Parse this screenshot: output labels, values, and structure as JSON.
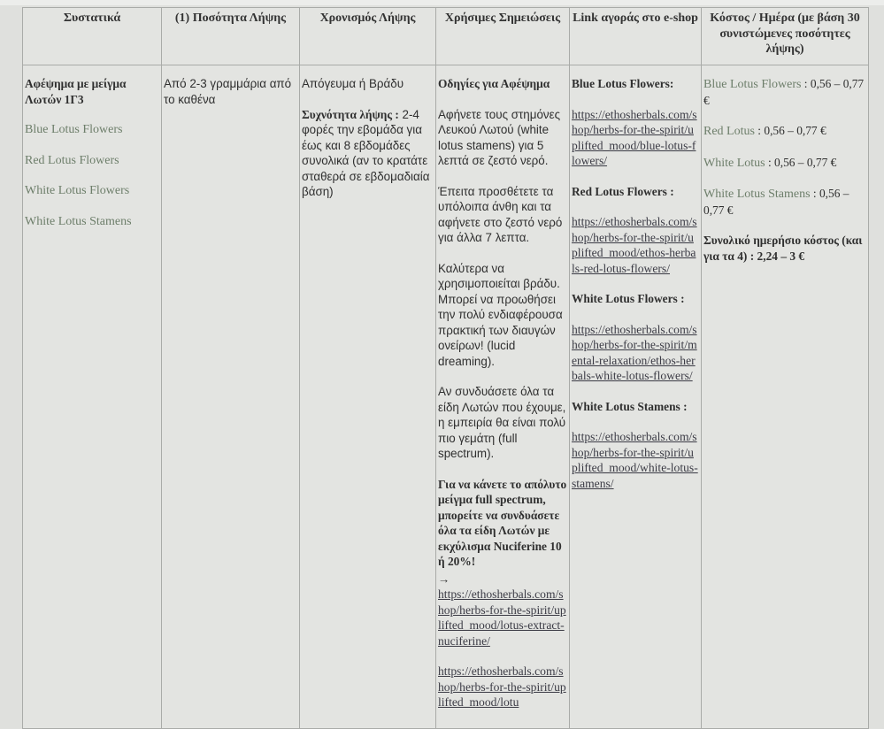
{
  "headers": [
    "Συστατικά",
    "(1) Ποσότητα Λήψης",
    "Χρονισμός Λήψης",
    "Χρήσιμες Σημειώσεις",
    "Link αγοράς στο e-shop",
    "Κόστος / Ημέρα (με βάση 30 συνιστώμενες ποσότητες λήψης)"
  ],
  "row": {
    "ingredients": {
      "title": "Αφέψημα με μείγμα Λωτών 1Γ3",
      "items": [
        "Blue Lotus Flowers",
        "Red Lotus Flowers",
        "White Lotus Flowers",
        "White Lotus Stamens"
      ]
    },
    "quantity": "Από 2-3 γραμμάρια από το καθένα",
    "timing": {
      "time": "Απόγευμα ή Βράδυ",
      "frequency_label": "Συχνότητα λήψης :",
      "frequency_text": " 2-4 φορές την εβομάδα για έως και 8 εβδομάδες συνολικά (αν το κρατάτε σταθερά σε εβδομαδιαία βάση)"
    },
    "notes": {
      "title": "Οδηγίες για Αφέψημα",
      "p1": "Αφήνετε τους στημόνες Λευκού Λωτού (white lotus stamens) για 5 λεπτά σε ζεστό νερό.",
      "p2": "Έπειτα προσθέτετε τα υπόλοιπα άνθη και τα αφήνετε στο ζεστό νερό για άλλα 7 λεπτα.",
      "p3": "Καλύτερα να χρησιμοποιείται βράδυ. Μπορεί να προωθήσει την πολύ ενδιαφέρουσα πρακτική των διαυγών ονείρων! (lucid dreaming).",
      "p4": "Αν συνδυάσετε όλα τα είδη Λωτών που έχουμε, η εμπειρία θα είναι πολύ πιο γεμάτη (full spectrum).",
      "p5": "Για να κάνετε το απόλυτο μείγμα full spectrum, μπορείτε να συνδυάσετε όλα τα είδη Λωτών με εκχύλισμα Nuciferine 10 ή 20%!",
      "arrow": "→",
      "link1": "https://ethosherbals.com/shop/herbs-for-the-spirit/uplifted_mood/lotus-extract-nuciferine/",
      "link2": "https://ethosherbals.com/shop/herbs-for-the-spirit/uplifted_mood/lotu"
    },
    "links": [
      {
        "label": "Blue Lotus Flowers:",
        "url": "https://ethosherbals.com/shop/herbs-for-the-spirit/uplifted_mood/blue-lotus-flowers/"
      },
      {
        "label": "Red Lotus Flowers :",
        "url": "https://ethosherbals.com/shop/herbs-for-the-spirit/uplifted_mood/ethos-herbals-red-lotus-flowers/"
      },
      {
        "label": "White Lotus Flowers :",
        "url": "https://ethosherbals.com/shop/herbs-for-the-spirit/mental-relaxation/ethos-herbals-white-lotus-flowers/"
      },
      {
        "label": "White Lotus Stamens :",
        "url": "https://ethosherbals.com/shop/herbs-for-the-spirit/uplifted_mood/white-lotus-stamens/"
      }
    ],
    "costs": [
      {
        "name": "Blue Lotus Flowers",
        "value": " : 0,56 – 0,77 €"
      },
      {
        "name": "Red Lotus",
        "value": " : 0,56 – 0,77 €"
      },
      {
        "name": "White Lotus",
        "value": " : 0,56 – 0,77 €"
      },
      {
        "name": "White Lotus Stamens",
        "value": " : 0,56 – 0,77 €"
      }
    ],
    "total": "Συνολικό ημερήσιο κόστος (και για τα 4) : 2,24 – 3 €"
  },
  "colors": {
    "ingredient_name": "#6d7e6a",
    "link": "#3b3b45",
    "border": "#a9aba8"
  }
}
